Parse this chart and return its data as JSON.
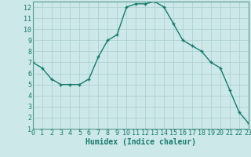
{
  "x": [
    0,
    1,
    2,
    3,
    4,
    5,
    6,
    7,
    8,
    9,
    10,
    11,
    12,
    13,
    14,
    15,
    16,
    17,
    18,
    19,
    20,
    21,
    22,
    23
  ],
  "y": [
    7,
    6.5,
    5.5,
    5,
    5,
    5,
    5.5,
    7.5,
    9,
    9.5,
    12,
    12.3,
    12.3,
    12.5,
    12,
    10.5,
    9,
    8.5,
    8,
    7,
    6.5,
    4.5,
    2.5,
    1.5
  ],
  "xlabel": "Humidex (Indice chaleur)",
  "xlim": [
    0,
    23
  ],
  "ylim": [
    1,
    12.5
  ],
  "yticks": [
    1,
    2,
    3,
    4,
    5,
    6,
    7,
    8,
    9,
    10,
    11,
    12
  ],
  "xticks": [
    0,
    1,
    2,
    3,
    4,
    5,
    6,
    7,
    8,
    9,
    10,
    11,
    12,
    13,
    14,
    15,
    16,
    17,
    18,
    19,
    20,
    21,
    22,
    23
  ],
  "line_color": "#1a7a6e",
  "bg_color": "#cce8e8",
  "grid_color": "#aacece",
  "xlabel_fontsize": 7,
  "tick_fontsize": 6,
  "label_color": "#1a7a6e"
}
